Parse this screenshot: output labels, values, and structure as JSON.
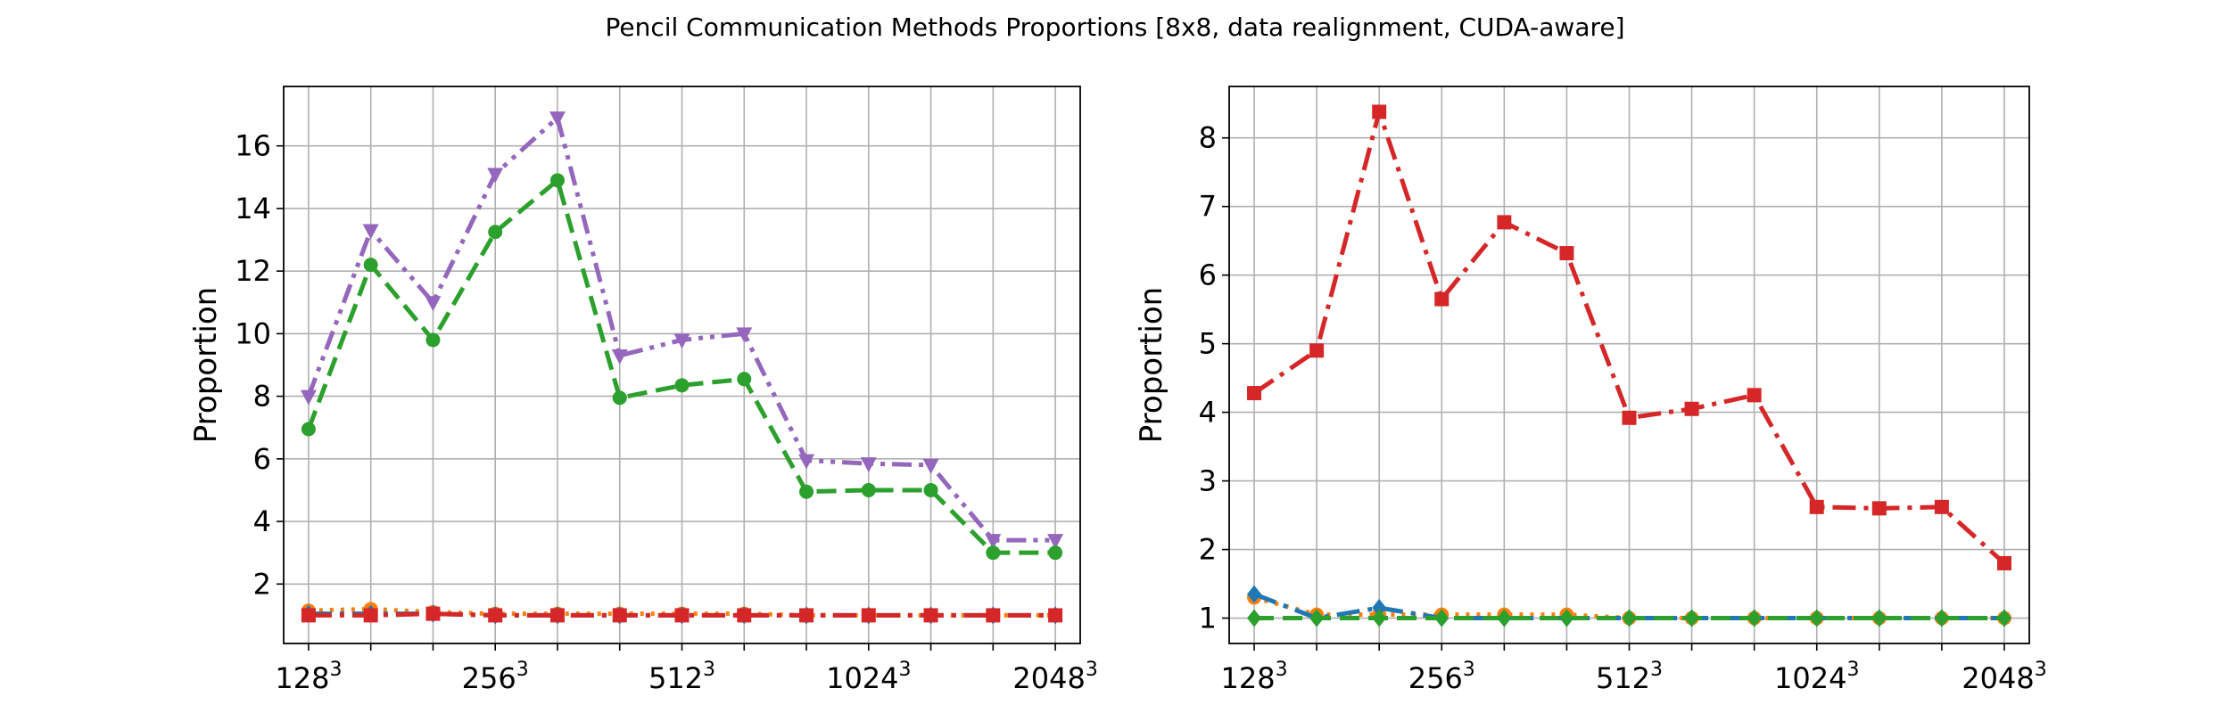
{
  "title": "Pencil Communication Methods Proportions [8x8, data realignment, CUDA-aware]",
  "colors": {
    "blue": "#1f77b4",
    "orange": "#ff7f0e",
    "green": "#2ca02c",
    "red": "#d62728",
    "purple": "#9467bd",
    "grid": "#b0b0b0"
  },
  "chart_data": [
    {
      "type": "line",
      "ylabel": "Proportion",
      "xlabel": "",
      "grid": true,
      "ylim": [
        0.1,
        17.9
      ],
      "yticks": [
        2,
        4,
        6,
        8,
        10,
        12,
        14,
        16
      ],
      "x": [
        0,
        1,
        2,
        3,
        4,
        5,
        6,
        7,
        8,
        9,
        10,
        11,
        12
      ],
      "xlim": [
        -0.4,
        12.4
      ],
      "xticklabels": [
        {
          "x": 0,
          "base": "128",
          "exp": "3"
        },
        {
          "x": 3,
          "base": "256",
          "exp": "3"
        },
        {
          "x": 6,
          "base": "512",
          "exp": "3"
        },
        {
          "x": 9,
          "base": "1024",
          "exp": "3"
        },
        {
          "x": 12,
          "base": "2048",
          "exp": "3"
        }
      ],
      "series": [
        {
          "color": "purple",
          "dash": "dashdotdot",
          "marker": "triangle-down",
          "values": [
            8.0,
            13.3,
            11.0,
            15.1,
            16.9,
            9.3,
            9.8,
            10.0,
            5.95,
            5.85,
            5.8,
            3.4,
            3.4
          ]
        },
        {
          "color": "green",
          "dash": "dashed",
          "marker": "circle",
          "values": [
            6.95,
            12.2,
            9.8,
            13.25,
            14.9,
            7.95,
            8.35,
            8.55,
            4.95,
            5.0,
            5.0,
            3.0,
            3.0
          ]
        },
        {
          "color": "orange",
          "dash": "dotted",
          "marker": "circle",
          "values": [
            1.15,
            1.2,
            1.1,
            1.05,
            1.05,
            1.05,
            1.05,
            1.05,
            1.0,
            1.0,
            1.0,
            1.0,
            1.0
          ]
        },
        {
          "color": "blue",
          "dash": "dashdot",
          "marker": "diamond",
          "values": [
            1.05,
            1.05,
            1.05,
            1.0,
            1.0,
            1.0,
            1.0,
            1.0,
            1.0,
            1.0,
            1.0,
            1.0,
            1.0
          ]
        },
        {
          "color": "red",
          "dash": "dashdot",
          "marker": "square",
          "values": [
            1.0,
            1.0,
            1.05,
            1.0,
            1.0,
            1.0,
            1.0,
            1.0,
            1.0,
            1.0,
            1.0,
            1.0,
            1.0
          ]
        }
      ]
    },
    {
      "type": "line",
      "ylabel": "Proportion",
      "xlabel": "",
      "grid": true,
      "ylim": [
        0.63,
        8.75
      ],
      "yticks": [
        1,
        2,
        3,
        4,
        5,
        6,
        7,
        8
      ],
      "x": [
        0,
        1,
        2,
        3,
        4,
        5,
        6,
        7,
        8,
        9,
        10,
        11,
        12
      ],
      "xlim": [
        -0.4,
        12.4
      ],
      "xticklabels": [
        {
          "x": 0,
          "base": "128",
          "exp": "3"
        },
        {
          "x": 3,
          "base": "256",
          "exp": "3"
        },
        {
          "x": 6,
          "base": "512",
          "exp": "3"
        },
        {
          "x": 9,
          "base": "1024",
          "exp": "3"
        },
        {
          "x": 12,
          "base": "2048",
          "exp": "3"
        }
      ],
      "series": [
        {
          "color": "red",
          "dash": "dashdot",
          "marker": "square",
          "values": [
            4.28,
            4.9,
            8.38,
            5.65,
            6.77,
            6.32,
            3.92,
            4.05,
            4.25,
            2.62,
            2.6,
            2.62,
            1.8
          ]
        },
        {
          "color": "orange",
          "dash": "dotted",
          "marker": "circle",
          "values": [
            1.3,
            1.05,
            1.05,
            1.05,
            1.05,
            1.05,
            1.0,
            1.0,
            1.0,
            1.0,
            1.0,
            1.0,
            1.0
          ]
        },
        {
          "color": "blue",
          "dash": "dashdot",
          "marker": "diamond",
          "values": [
            1.35,
            1.0,
            1.15,
            1.0,
            1.0,
            1.0,
            1.0,
            1.0,
            1.0,
            1.0,
            1.0,
            1.0,
            1.0
          ]
        },
        {
          "color": "green",
          "dash": "dashed",
          "marker": "diamond",
          "values": [
            1.0,
            1.0,
            1.0,
            1.0,
            1.0,
            1.0,
            1.0,
            1.0,
            1.0,
            1.0,
            1.0,
            1.0,
            1.0
          ]
        }
      ]
    }
  ]
}
